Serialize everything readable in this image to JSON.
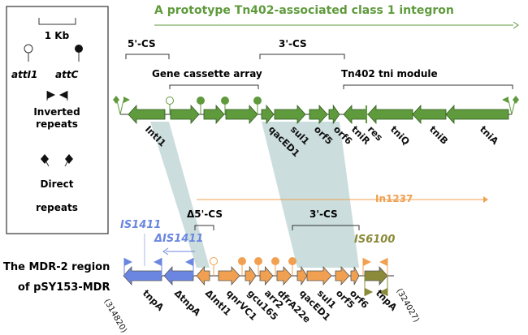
{
  "title": "A prototype Tn402-associated class 1 integron",
  "colors": {
    "green": "#5f9a3c",
    "green_dark": "#2e5a1c",
    "blue": "#6b86e0",
    "orange": "#f0a050",
    "olive": "#8a8a3a",
    "shade": "#b9d2d2"
  },
  "legend": {
    "scale_label": "1 Kb",
    "attI1": "attI1",
    "attC": "attC",
    "inverted_repeats": "Inverted repeats",
    "inverted_repeats_line1": "Inverted",
    "inverted_repeats_line2": "repeats",
    "direct_repeats_line1": "Direct",
    "direct_repeats_line2": "repeats"
  },
  "top": {
    "cs5": "5'-CS",
    "cs3": "3'-CS",
    "cassette_array": "Gene cassette array",
    "tni_module": "Tn402 tni module",
    "genes": [
      "IntI1",
      "qacED1",
      "sul1",
      "orf5",
      "orf6",
      "tniR",
      "res",
      "tniQ",
      "tniB",
      "tniA"
    ]
  },
  "bottom": {
    "region_line1": "The MDR-2 region",
    "region_line2": "of pSY153-MDR",
    "in1237": "In1237",
    "delta_cs5": "Δ5'-CS",
    "cs3": "3'-CS",
    "is1411": "IS1411",
    "delta_is1411": "ΔIS1411",
    "is6100": "IS6100",
    "start_coord": "(314820)",
    "end_coord": "(324027)",
    "genes": [
      "tnpA",
      "ΔtnpA",
      "ΔIntI1",
      "qnrVC1",
      "gcu165",
      "arr2",
      "dfrA22e",
      "qacED1",
      "sul1",
      "orf5",
      "orf6",
      "tnpA"
    ]
  }
}
